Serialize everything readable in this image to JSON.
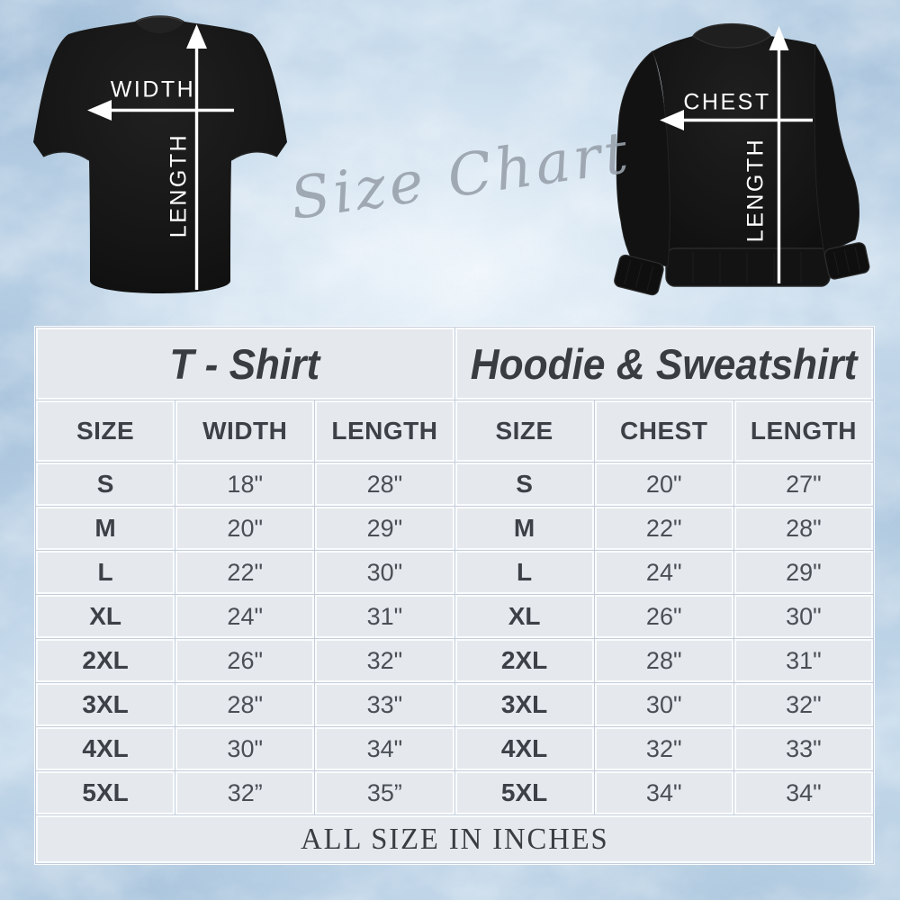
{
  "hero": {
    "script_title": "Size Chart",
    "tshirt_diagram": {
      "width_label": "WIDTH",
      "length_label": "LENGTH"
    },
    "hoodie_diagram": {
      "chest_label": "CHEST",
      "length_label": "LENGTH"
    }
  },
  "size_table": {
    "sections": [
      {
        "title": "T - Shirt",
        "columns": [
          "SIZE",
          "WIDTH",
          "LENGTH"
        ]
      },
      {
        "title": "Hoodie & Sweatshirt",
        "columns": [
          "SIZE",
          "CHEST",
          "LENGTH"
        ]
      }
    ],
    "rows": [
      {
        "size": "S",
        "tshirt": [
          "18\"",
          "28\""
        ],
        "hoodie": [
          "20\"",
          "27\""
        ]
      },
      {
        "size": "M",
        "tshirt": [
          "20\"",
          "29\""
        ],
        "hoodie": [
          "22\"",
          "28\""
        ]
      },
      {
        "size": "L",
        "tshirt": [
          "22\"",
          "30\""
        ],
        "hoodie": [
          "24\"",
          "29\""
        ]
      },
      {
        "size": "XL",
        "tshirt": [
          "24\"",
          "31\""
        ],
        "hoodie": [
          "26\"",
          "30\""
        ]
      },
      {
        "size": "2XL",
        "tshirt": [
          "26\"",
          "32\""
        ],
        "hoodie": [
          "28\"",
          "31\""
        ]
      },
      {
        "size": "3XL",
        "tshirt": [
          "28\"",
          "33\""
        ],
        "hoodie": [
          "30\"",
          "32\""
        ]
      },
      {
        "size": "4XL",
        "tshirt": [
          "30\"",
          "34\""
        ],
        "hoodie": [
          "32\"",
          "33\""
        ]
      },
      {
        "size": "5XL",
        "tshirt": [
          "32”",
          "35”"
        ],
        "hoodie": [
          "34\"",
          "34\""
        ]
      }
    ],
    "footer_note": "ALL SIZE IN INCHES"
  },
  "chart_data": {
    "type": "table",
    "title": "Size Chart",
    "units": "inches",
    "tables": [
      {
        "name": "T - Shirt",
        "columns": [
          "SIZE",
          "WIDTH",
          "LENGTH"
        ],
        "rows": [
          [
            "S",
            18,
            28
          ],
          [
            "M",
            20,
            29
          ],
          [
            "L",
            22,
            30
          ],
          [
            "XL",
            24,
            31
          ],
          [
            "2XL",
            26,
            32
          ],
          [
            "3XL",
            28,
            33
          ],
          [
            "4XL",
            30,
            34
          ],
          [
            "5XL",
            32,
            35
          ]
        ]
      },
      {
        "name": "Hoodie & Sweatshirt",
        "columns": [
          "SIZE",
          "CHEST",
          "LENGTH"
        ],
        "rows": [
          [
            "S",
            20,
            27
          ],
          [
            "M",
            22,
            28
          ],
          [
            "L",
            24,
            29
          ],
          [
            "XL",
            26,
            30
          ],
          [
            "2XL",
            28,
            31
          ],
          [
            "3XL",
            30,
            32
          ],
          [
            "4XL",
            32,
            33
          ],
          [
            "5XL",
            34,
            34
          ]
        ]
      }
    ],
    "footer": "ALL SIZE IN INCHES"
  },
  "colors": {
    "background_blue": "#c6daeb",
    "cell_background": "#e5e9ee",
    "grid_line": "#c4cedb",
    "table_gap": "#fafbfd",
    "heading_text": "#393d42",
    "value_text": "#4a4f56",
    "script_gray": "#99a2ac",
    "arrow_white": "#ffffff",
    "garment_black": "#141414"
  }
}
